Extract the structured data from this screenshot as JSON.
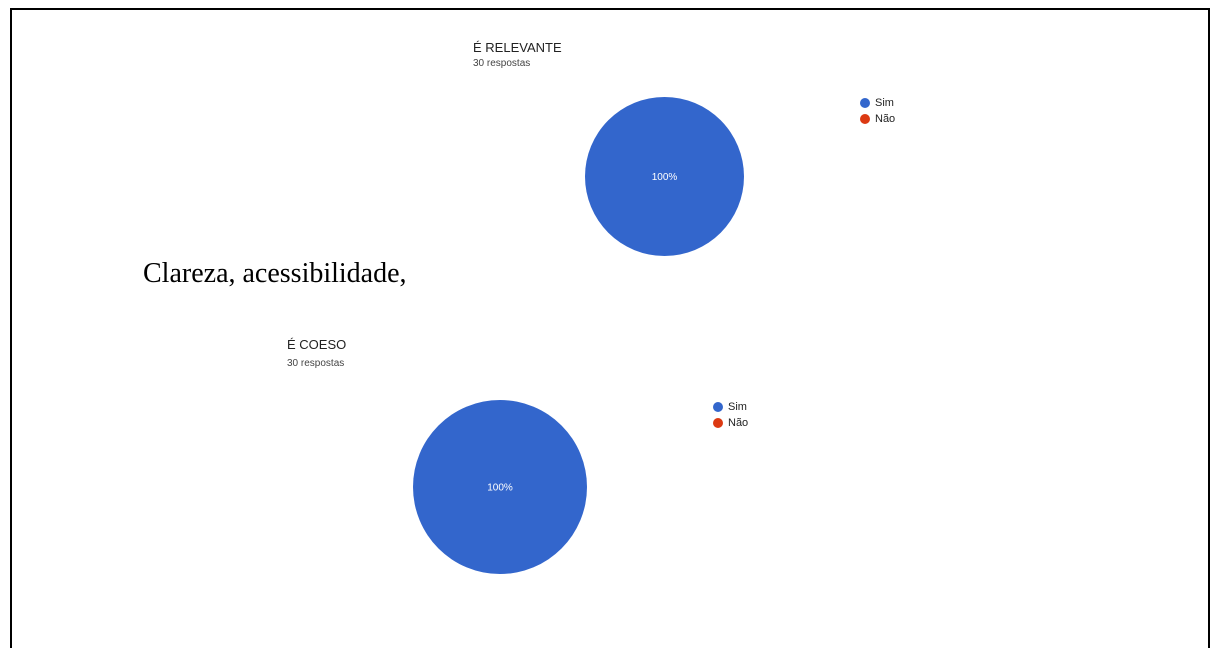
{
  "caption": "Clareza, acessibilidade,",
  "chart_data": [
    {
      "type": "pie",
      "title": "É RELEVANTE",
      "subtitle": "30 respostas",
      "categories": [
        "Sim",
        "Não"
      ],
      "values": [
        30,
        0
      ],
      "data_labels": [
        "100%",
        ""
      ],
      "colors": [
        "#3366cc",
        "#dc3912"
      ],
      "legend_position": "right"
    },
    {
      "type": "pie",
      "title": "É COESO",
      "subtitle": "30 respostas",
      "categories": [
        "Sim",
        "Não"
      ],
      "values": [
        30,
        0
      ],
      "data_labels": [
        "100%",
        ""
      ],
      "colors": [
        "#3366cc",
        "#dc3912"
      ],
      "legend_position": "right"
    }
  ]
}
